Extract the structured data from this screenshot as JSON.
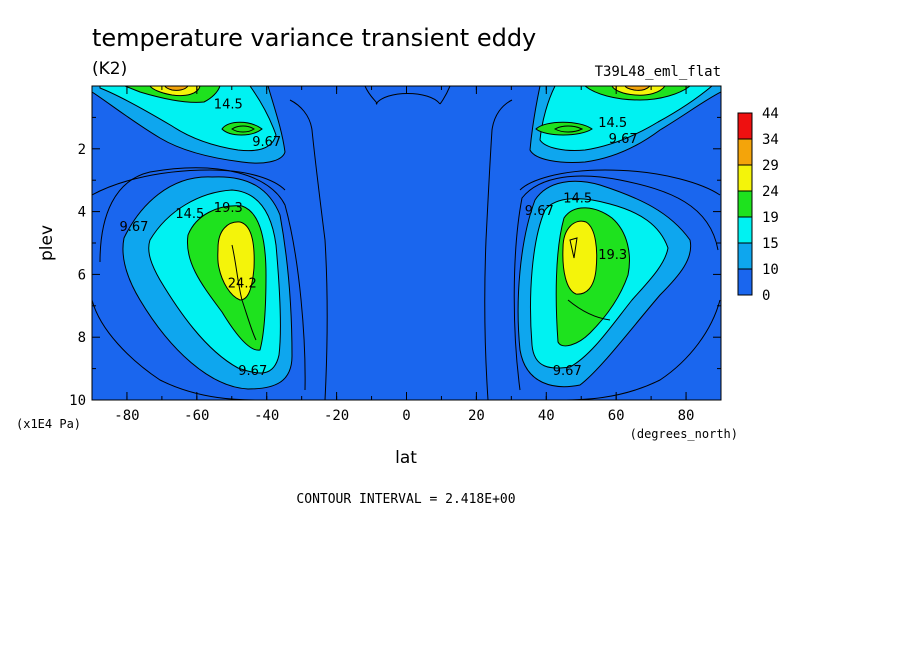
{
  "chart_data": {
    "type": "contour",
    "title": "temperature variance transient eddy",
    "units": "(K2)",
    "dataset": "T39L48_eml_flat",
    "xlabel": "lat",
    "ylabel": "plev",
    "x_units": "(degrees_north)",
    "y_units": "(x1E4 Pa)",
    "xlim": [
      -90,
      90
    ],
    "ylim": [
      10,
      0
    ],
    "x_ticks": [
      "-80",
      "-60",
      "-40",
      "-20",
      "0",
      "20",
      "40",
      "60",
      "80"
    ],
    "y_ticks": [
      "2",
      "4",
      "6",
      "8",
      "10"
    ],
    "contour_interval": "CONTOUR INTERVAL = 2.418E+00",
    "colorbar_labels": [
      "0",
      "10",
      "15",
      "19",
      "24",
      "29",
      "34",
      "44"
    ],
    "colorbar_colors": [
      "#1a66ee",
      "#0ea6ee",
      "#00f2f2",
      "#1ee21e",
      "#f4f40a",
      "#f4a40a",
      "#ee1010"
    ],
    "contour_labels": [
      {
        "text": "14.5",
        "lat": -51,
        "plev": 0.6
      },
      {
        "text": "9.67",
        "lat": -40,
        "plev": 1.8
      },
      {
        "text": "9.67",
        "lat": -78,
        "plev": 4.5
      },
      {
        "text": "14.5",
        "lat": -62,
        "plev": 4.1
      },
      {
        "text": "19.3",
        "lat": -51,
        "plev": 3.9
      },
      {
        "text": "24.2",
        "lat": -47,
        "plev": 6.3
      },
      {
        "text": "9.67",
        "lat": -44,
        "plev": 9.1
      },
      {
        "text": "14.5",
        "lat": 59,
        "plev": 1.2
      },
      {
        "text": "9.67",
        "lat": 62,
        "plev": 1.7
      },
      {
        "text": "9.67",
        "lat": 38,
        "plev": 4.0
      },
      {
        "text": "14.5",
        "lat": 49,
        "plev": 3.6
      },
      {
        "text": "19.3",
        "lat": 59,
        "plev": 5.4
      },
      {
        "text": "9.67",
        "lat": 46,
        "plev": 9.1
      }
    ],
    "peaks": [
      {
        "lat": -48,
        "plev": 5.4,
        "value": 26
      },
      {
        "lat": 46,
        "plev": 5.4,
        "value": 27
      },
      {
        "lat": -49,
        "plev": 1.4,
        "value": 21
      },
      {
        "lat": 47,
        "plev": 1.4,
        "value": 21
      },
      {
        "lat": -68,
        "plev": 0.05,
        "value": 31
      },
      {
        "lat": 65,
        "plev": 0.05,
        "value": 31
      }
    ]
  }
}
